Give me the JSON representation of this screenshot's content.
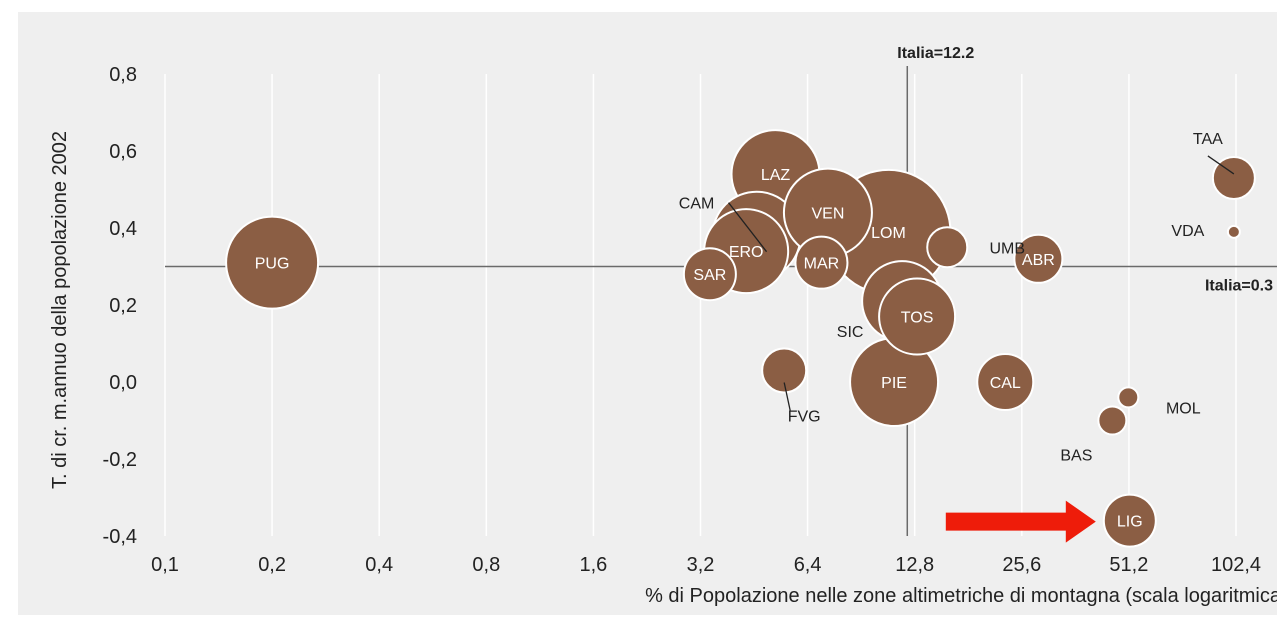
{
  "chart_data": {
    "type": "scatter",
    "subtype": "bubble",
    "xlabel": "% di Popolazione nelle zone altimetriche di montagna (scala logaritmica",
    "ylabel": "T. di cr. m.annuo  della popolazione 2002",
    "x_scale": "log2",
    "xlim": [
      0.1,
      102.4
    ],
    "ylim": [
      -0.4,
      0.8
    ],
    "x_ticks": [
      "0,1",
      "0,2",
      "0,4",
      "0,8",
      "1,6",
      "3,2",
      "6,4",
      "12,8",
      "25,6",
      "51,2",
      "102,4"
    ],
    "x_tick_values": [
      0.1,
      0.2,
      0.4,
      0.8,
      1.6,
      3.2,
      6.4,
      12.8,
      25.6,
      51.2,
      102.4
    ],
    "y_ticks": [
      "0,8",
      "0,6",
      "0,4",
      "0,2",
      "0,0",
      "-0,2",
      "-0,4"
    ],
    "y_tick_values": [
      0.8,
      0.6,
      0.4,
      0.2,
      0.0,
      -0.2,
      -0.4
    ],
    "grid": "vertical",
    "bubble_color": "#8b5e44",
    "reference_lines": [
      {
        "axis": "x",
        "value": 12.2,
        "label": "Italia=12.2"
      },
      {
        "axis": "y",
        "value": 0.3,
        "label": "Italia=0.3"
      }
    ],
    "points": [
      {
        "label": "PUG",
        "x": 0.2,
        "y": 0.31,
        "size": 46,
        "label_inside": true
      },
      {
        "label": "LAZ",
        "x": 5.2,
        "y": 0.54,
        "size": 44,
        "label_inside": true
      },
      {
        "label": "CAM",
        "x": 4.6,
        "y": 0.38,
        "size": 44,
        "label_inside": false
      },
      {
        "label": "ERO",
        "x": 4.3,
        "y": 0.34,
        "size": 42,
        "label_inside": true
      },
      {
        "label": "VEN",
        "x": 7.3,
        "y": 0.44,
        "size": 44,
        "label_inside": true
      },
      {
        "label": "MAR",
        "x": 7.0,
        "y": 0.31,
        "size": 26,
        "label_inside": true
      },
      {
        "label": "SAR",
        "x": 3.4,
        "y": 0.28,
        "size": 26,
        "label_inside": true
      },
      {
        "label": "LOM",
        "x": 10.8,
        "y": 0.39,
        "size": 62,
        "label_inside": true
      },
      {
        "label": "UMB",
        "x": 15.8,
        "y": 0.35,
        "size": 20,
        "label_inside": false
      },
      {
        "label": "ABR",
        "x": 28.5,
        "y": 0.32,
        "size": 24,
        "label_inside": true
      },
      {
        "label": "SIC",
        "x": 11.8,
        "y": 0.21,
        "size": 40,
        "label_inside": false
      },
      {
        "label": "TOS",
        "x": 13.0,
        "y": 0.17,
        "size": 38,
        "label_inside": true
      },
      {
        "label": "FVG",
        "x": 5.5,
        "y": 0.03,
        "size": 22,
        "label_inside": false
      },
      {
        "label": "PIE",
        "x": 11.2,
        "y": 0.0,
        "size": 44,
        "label_inside": true
      },
      {
        "label": "CAL",
        "x": 23.0,
        "y": 0.0,
        "size": 28,
        "label_inside": true
      },
      {
        "label": "MOL",
        "x": 51.0,
        "y": -0.04,
        "size": 10,
        "label_inside": false
      },
      {
        "label": "BAS",
        "x": 46.0,
        "y": -0.1,
        "size": 14,
        "label_inside": false
      },
      {
        "label": "LIG",
        "x": 51.5,
        "y": -0.36,
        "size": 26,
        "label_inside": true
      },
      {
        "label": "TAA",
        "x": 101.0,
        "y": 0.53,
        "size": 21,
        "label_inside": false
      },
      {
        "label": "VDA",
        "x": 101.0,
        "y": 0.39,
        "size": 6,
        "label_inside": false
      }
    ],
    "annotation_arrow": {
      "color": "#ee1c0a",
      "points_toward": "LIG"
    }
  }
}
